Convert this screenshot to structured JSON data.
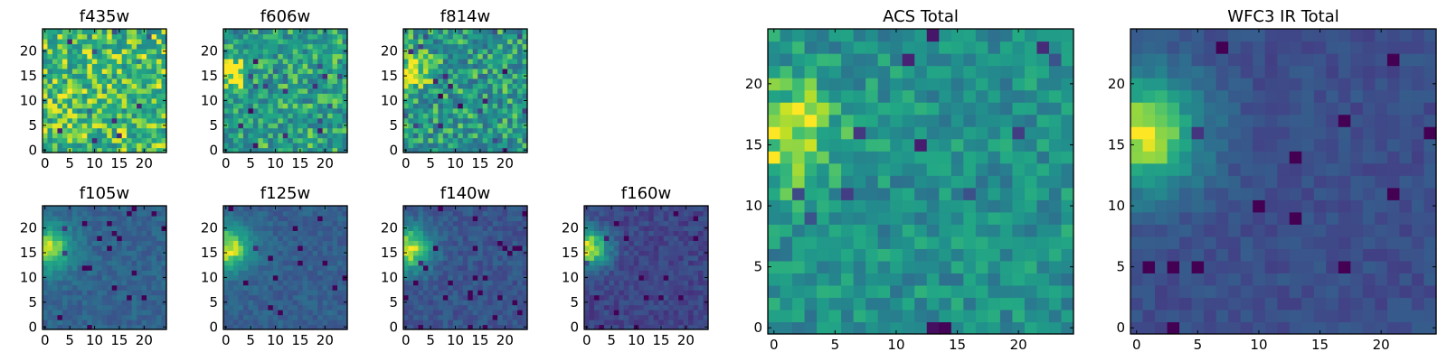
{
  "figure": {
    "background": "#ffffff",
    "colormap": "viridis"
  },
  "chart_data": [
    {
      "type": "heatmap",
      "id": "f435w",
      "title": "f435w",
      "grid_size": 25,
      "xlim": [
        0,
        24
      ],
      "ylim": [
        0,
        24
      ],
      "xticks": [
        0,
        5,
        10,
        15,
        20
      ],
      "yticks": [
        0,
        5,
        10,
        15,
        20
      ],
      "value_range": [
        0.3,
        1.0
      ],
      "pattern": {
        "base": 0.78,
        "blob": [
          1,
          16,
          4,
          0.0
        ],
        "noise": 0.22,
        "seed": 11
      }
    },
    {
      "type": "heatmap",
      "id": "f606w",
      "title": "f606w",
      "grid_size": 25,
      "xlim": [
        0,
        24
      ],
      "ylim": [
        0,
        24
      ],
      "xticks": [
        0,
        5,
        10,
        15,
        20
      ],
      "yticks": [
        0,
        5,
        10,
        15,
        20
      ],
      "value_range": [
        0.3,
        1.0
      ],
      "pattern": {
        "base": 0.68,
        "blob": [
          1,
          16,
          2.5,
          0.3
        ],
        "noise": 0.22,
        "seed": 23
      }
    },
    {
      "type": "heatmap",
      "id": "f814w",
      "title": "f814w",
      "grid_size": 25,
      "xlim": [
        0,
        24
      ],
      "ylim": [
        0,
        24
      ],
      "xticks": [
        0,
        5,
        10,
        15,
        20
      ],
      "yticks": [
        0,
        5,
        10,
        15,
        20
      ],
      "value_range": [
        0.3,
        1.0
      ],
      "pattern": {
        "base": 0.65,
        "blob": [
          1,
          16,
          2.5,
          0.35
        ],
        "noise": 0.24,
        "seed": 37
      }
    },
    {
      "type": "heatmap",
      "id": "f105w",
      "title": "f105w",
      "grid_size": 25,
      "xlim": [
        0,
        24
      ],
      "ylim": [
        0,
        24
      ],
      "xticks": [
        0,
        5,
        10,
        15,
        20
      ],
      "yticks": [
        0,
        5,
        10,
        15,
        20
      ],
      "value_range": [
        0.0,
        1.0
      ],
      "pattern": {
        "base": 0.4,
        "blob": [
          0.5,
          16,
          3.5,
          0.55
        ],
        "noise": 0.08,
        "seed": 41
      }
    },
    {
      "type": "heatmap",
      "id": "f125w",
      "title": "f125w",
      "grid_size": 25,
      "xlim": [
        0,
        24
      ],
      "ylim": [
        0,
        24
      ],
      "xticks": [
        0,
        5,
        10,
        15,
        20
      ],
      "yticks": [
        0,
        5,
        10,
        15,
        20
      ],
      "value_range": [
        0.0,
        1.0
      ],
      "pattern": {
        "base": 0.38,
        "blob": [
          0.5,
          16,
          3.5,
          0.58
        ],
        "noise": 0.08,
        "seed": 53
      }
    },
    {
      "type": "heatmap",
      "id": "f140w",
      "title": "f140w",
      "grid_size": 25,
      "xlim": [
        0,
        24
      ],
      "ylim": [
        0,
        24
      ],
      "xticks": [
        0,
        5,
        10,
        15,
        20
      ],
      "yticks": [
        0,
        5,
        10,
        15,
        20
      ],
      "value_range": [
        0.0,
        1.0
      ],
      "pattern": {
        "base": 0.33,
        "blob": [
          0.5,
          16,
          3.5,
          0.62
        ],
        "noise": 0.09,
        "seed": 67
      }
    },
    {
      "type": "heatmap",
      "id": "f160w",
      "title": "f160w",
      "grid_size": 25,
      "xlim": [
        0,
        24
      ],
      "ylim": [
        0,
        24
      ],
      "xticks": [
        0,
        5,
        10,
        15,
        20
      ],
      "yticks": [
        0,
        5,
        10,
        15,
        20
      ],
      "value_range": [
        0.0,
        1.0
      ],
      "pattern": {
        "base": 0.26,
        "blob": [
          0.5,
          16,
          3,
          0.7
        ],
        "noise": 0.09,
        "seed": 79
      }
    },
    {
      "type": "heatmap",
      "id": "acs_total",
      "title": "ACS Total",
      "grid_size": 25,
      "xlim": [
        0,
        24
      ],
      "ylim": [
        0,
        24
      ],
      "xticks": [
        0,
        5,
        10,
        15,
        20
      ],
      "yticks": [
        0,
        5,
        10,
        15,
        20
      ],
      "value_range": [
        0.0,
        1.0
      ],
      "pattern": {
        "base": 0.62,
        "blob": [
          1,
          16,
          3,
          0.35
        ],
        "noise": 0.16,
        "seed": 97
      }
    },
    {
      "type": "heatmap",
      "id": "wfc3_ir_total",
      "title": "WFC3 IR Total",
      "grid_size": 25,
      "xlim": [
        0,
        24
      ],
      "ylim": [
        0,
        24
      ],
      "xticks": [
        0,
        5,
        10,
        15,
        20
      ],
      "yticks": [
        0,
        5,
        10,
        15,
        20
      ],
      "value_range": [
        0.0,
        1.0
      ],
      "pattern": {
        "base": 0.3,
        "blob": [
          0.5,
          16,
          3.5,
          0.68
        ],
        "noise": 0.07,
        "seed": 103
      }
    }
  ]
}
